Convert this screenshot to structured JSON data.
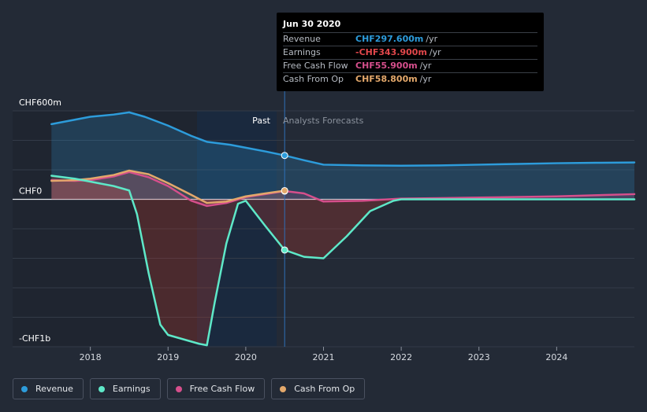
{
  "tooltip": {
    "date": "Jun 30 2020",
    "rows": [
      {
        "label": "Revenue",
        "value": "CHF297.600m",
        "unit": "/yr",
        "color": "#2d9cdb"
      },
      {
        "label": "Earnings",
        "value": "-CHF343.900m",
        "unit": "/yr",
        "color": "#e2474b"
      },
      {
        "label": "Free Cash Flow",
        "value": "CHF55.900m",
        "unit": "/yr",
        "color": "#d64f8c"
      },
      {
        "label": "Cash From Op",
        "value": "CHF58.800m",
        "unit": "/yr",
        "color": "#e3a86b"
      }
    ]
  },
  "chart_data": {
    "type": "line",
    "title": "",
    "xlabel": "",
    "ylabel": "",
    "x_ticks": [
      "2018",
      "2019",
      "2020",
      "2021",
      "2022",
      "2023",
      "2024"
    ],
    "y_tick_labels": [
      "CHF600m",
      "CHF0",
      "-CHF1b"
    ],
    "ylim": [
      -1000,
      600
    ],
    "xlim": [
      2017.0,
      2025.0
    ],
    "past_label": "Past",
    "forecast_label": "Analysts Forecasts",
    "divider_x": 2020.5,
    "series": [
      {
        "name": "Revenue",
        "color": "#2d9cdb",
        "x": [
          2017.5,
          2017.8,
          2018.0,
          2018.3,
          2018.5,
          2018.7,
          2019.0,
          2019.3,
          2019.5,
          2019.8,
          2020.0,
          2020.25,
          2020.5,
          2020.75,
          2021.0,
          2021.5,
          2022.0,
          2022.5,
          2023.0,
          2023.5,
          2024.0,
          2024.5,
          2025.0
        ],
        "values": [
          510,
          540,
          560,
          575,
          590,
          560,
          500,
          430,
          390,
          370,
          350,
          325,
          297.6,
          265,
          235,
          230,
          228,
          230,
          235,
          240,
          245,
          248,
          250
        ]
      },
      {
        "name": "Earnings",
        "color": "#5ee8c8",
        "x": [
          2017.5,
          2017.8,
          2018.0,
          2018.3,
          2018.5,
          2018.6,
          2018.75,
          2018.9,
          2019.0,
          2019.2,
          2019.4,
          2019.5,
          2019.6,
          2019.75,
          2019.9,
          2020.0,
          2020.25,
          2020.5,
          2020.75,
          2021.0,
          2021.3,
          2021.6,
          2021.9,
          2022.0,
          2022.5,
          2023.0,
          2024.0,
          2025.0
        ],
        "values": [
          160,
          140,
          120,
          90,
          60,
          -100,
          -500,
          -850,
          -920,
          -950,
          -980,
          -990,
          -700,
          -300,
          -30,
          -10,
          -180,
          -343.9,
          -390,
          -400,
          -250,
          -80,
          -10,
          0,
          0,
          0,
          0,
          0
        ]
      },
      {
        "name": "Free Cash Flow",
        "color": "#d64f8c",
        "x": [
          2017.5,
          2017.8,
          2018.0,
          2018.3,
          2018.5,
          2018.75,
          2019.0,
          2019.3,
          2019.5,
          2019.75,
          2020.0,
          2020.25,
          2020.5,
          2020.75,
          2021.0,
          2021.5,
          2022.0,
          2022.5,
          2023.0,
          2024.0,
          2025.0
        ],
        "values": [
          130,
          125,
          130,
          155,
          185,
          150,
          90,
          -10,
          -45,
          -25,
          15,
          35,
          55.9,
          40,
          -15,
          -10,
          5,
          8,
          12,
          20,
          35
        ]
      },
      {
        "name": "Cash From Op",
        "color": "#e3a86b",
        "x": [
          2017.5,
          2017.8,
          2018.0,
          2018.3,
          2018.5,
          2018.75,
          2019.0,
          2019.3,
          2019.5,
          2019.75,
          2020.0,
          2020.25,
          2020.5
        ],
        "values": [
          125,
          130,
          140,
          165,
          195,
          170,
          110,
          30,
          -25,
          -15,
          20,
          40,
          58.8
        ]
      }
    ]
  },
  "legend": [
    {
      "label": "Revenue",
      "color": "#2d9cdb"
    },
    {
      "label": "Earnings",
      "color": "#5ee8c8"
    },
    {
      "label": "Free Cash Flow",
      "color": "#d64f8c"
    },
    {
      "label": "Cash From Op",
      "color": "#e3a86b"
    }
  ]
}
